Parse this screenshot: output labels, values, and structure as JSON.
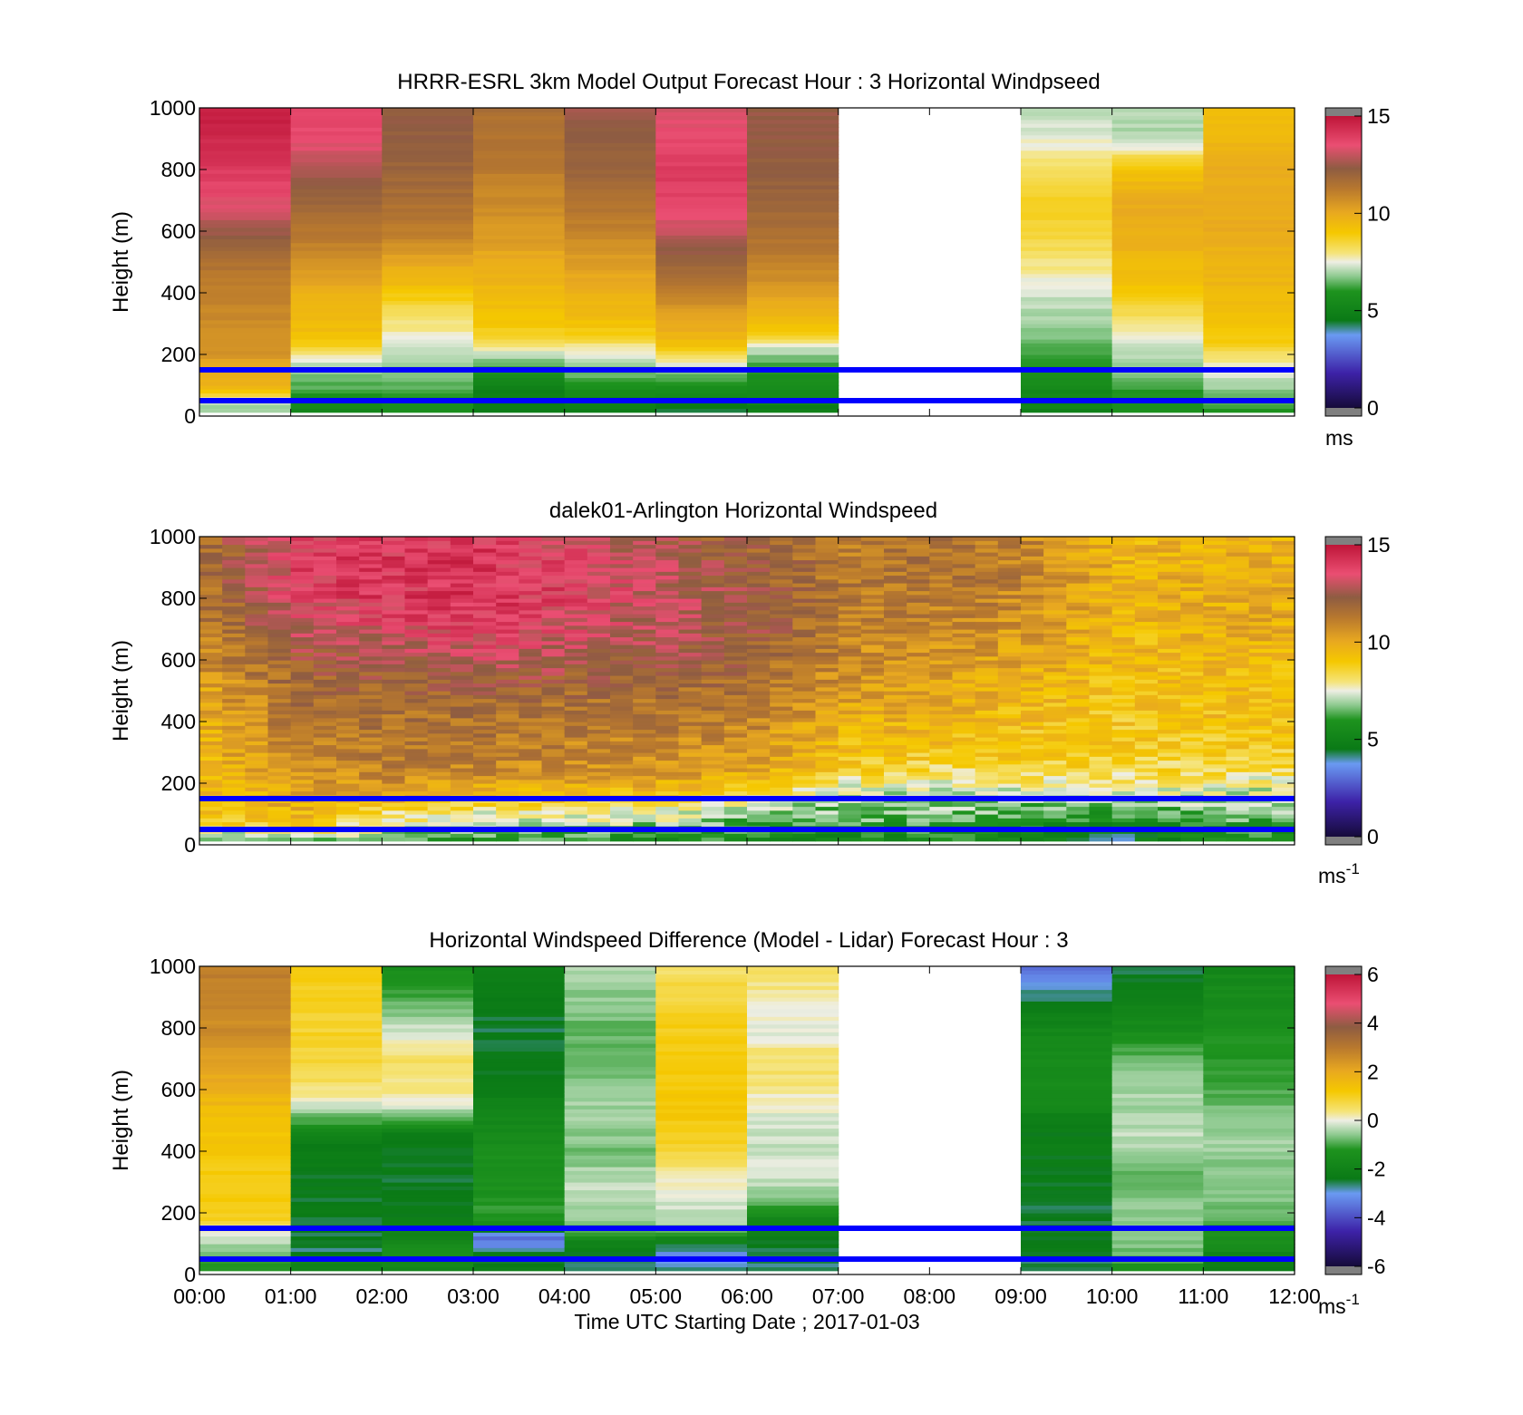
{
  "colors": {
    "ref_lines": "#0000ff",
    "missing": "#ffffff",
    "out_of_range": "#808080"
  },
  "x_axis": {
    "ticks": [
      "00:00",
      "01:00",
      "02:00",
      "03:00",
      "04:00",
      "05:00",
      "06:00",
      "07:00",
      "08:00",
      "09:00",
      "10:00",
      "11:00",
      "12:00"
    ],
    "label": "Time UTC  Starting Date ; 2017-01-03",
    "range_hours": [
      0,
      12
    ]
  },
  "chart_data": [
    {
      "type": "heatmap",
      "title": "HRRR-ESRL 3km Model Output   Forecast Hour : 3 Horizontal Windpseed",
      "ylabel": "Height (m)",
      "ylim": [
        0,
        1000
      ],
      "yticks": [
        "0",
        "200",
        "400",
        "600",
        "800",
        "1000"
      ],
      "colorbar": {
        "ticks": [
          "0",
          "5",
          "10",
          "15"
        ],
        "range": [
          0,
          15
        ],
        "unit": "ms",
        "unit_sup": ""
      },
      "missing_hours": [
        7,
        8
      ],
      "reference_lines_m": [
        50,
        150
      ],
      "profile_heights_m": [
        25,
        50,
        75,
        100,
        125,
        150,
        175,
        200,
        225,
        250,
        300,
        350,
        400,
        450,
        500,
        550,
        600,
        700,
        800,
        900,
        1000
      ],
      "hourly_profiles": [
        [
          6.8,
          7.2,
          9.0,
          9.6,
          10.0,
          10.0,
          10.2,
          10.5,
          10.6,
          10.7,
          10.8,
          10.9,
          11.0,
          11.2,
          11.5,
          12.0,
          12.5,
          13.5,
          14.0,
          14.5,
          14.8
        ],
        [
          5.2,
          5.6,
          6.0,
          6.4,
          6.6,
          6.9,
          7.3,
          7.8,
          8.5,
          9.2,
          9.4,
          9.6,
          9.8,
          10.2,
          10.6,
          11.0,
          11.3,
          12.0,
          12.8,
          13.5,
          13.8
        ],
        [
          5.6,
          5.9,
          6.2,
          6.4,
          6.6,
          6.7,
          6.9,
          7.0,
          7.3,
          7.6,
          7.9,
          8.4,
          9.0,
          9.6,
          10.0,
          10.6,
          11.2,
          11.6,
          12.0,
          12.2,
          12.3
        ],
        [
          4.6,
          4.7,
          4.9,
          5.1,
          5.4,
          6.0,
          6.6,
          7.2,
          7.8,
          8.4,
          9.0,
          9.3,
          9.5,
          9.7,
          9.9,
          10.2,
          10.4,
          10.8,
          11.2,
          11.4,
          11.6
        ],
        [
          4.8,
          5.1,
          5.5,
          5.9,
          6.3,
          6.7,
          7.0,
          7.4,
          7.8,
          8.6,
          9.2,
          9.6,
          9.8,
          10.0,
          10.3,
          10.6,
          11.0,
          11.5,
          12.0,
          12.3,
          12.5
        ],
        [
          4.5,
          4.9,
          5.4,
          5.8,
          6.4,
          7.0,
          7.6,
          8.3,
          9.0,
          9.6,
          10.0,
          10.5,
          11.0,
          11.5,
          12.0,
          12.5,
          13.0,
          13.8,
          14.0,
          13.6,
          13.2
        ],
        [
          4.8,
          5.1,
          5.4,
          5.6,
          5.8,
          6.0,
          6.4,
          6.8,
          7.4,
          8.5,
          9.3,
          9.8,
          10.3,
          10.7,
          11.0,
          11.3,
          11.6,
          12.0,
          12.2,
          12.3,
          12.4
        ],
        null,
        null,
        [
          5.0,
          5.2,
          5.3,
          5.5,
          5.6,
          5.8,
          6.0,
          6.2,
          6.4,
          6.6,
          6.9,
          7.1,
          7.3,
          7.6,
          8.0,
          8.3,
          8.6,
          8.6,
          8.2,
          7.5,
          7.0
        ],
        [
          5.8,
          6.0,
          6.1,
          6.3,
          6.5,
          6.7,
          6.9,
          7.0,
          7.2,
          7.5,
          8.0,
          8.5,
          9.0,
          9.3,
          9.5,
          9.7,
          9.8,
          9.9,
          9.2,
          7.0,
          7.1
        ],
        [
          6.0,
          6.3,
          6.6,
          6.9,
          7.2,
          7.5,
          7.8,
          8.2,
          8.6,
          8.9,
          9.2,
          9.4,
          9.5,
          9.6,
          9.7,
          9.8,
          9.9,
          10.0,
          9.9,
          9.6,
          9.4
        ]
      ]
    },
    {
      "type": "heatmap",
      "title": "dalek01-Arlington  Horizontal Windspeed",
      "ylabel": "Height (m)",
      "ylim": [
        0,
        1000
      ],
      "yticks": [
        "0",
        "200",
        "400",
        "600",
        "800",
        "1000"
      ],
      "colorbar": {
        "ticks": [
          "0",
          "5",
          "10",
          "15"
        ],
        "range": [
          0,
          15
        ],
        "unit": "ms",
        "unit_sup": "-1"
      },
      "time_step_minutes": 15,
      "valid_hours": [
        0,
        11.75
      ],
      "reference_lines_m": [
        50,
        150
      ],
      "profile_heights_m": [
        25,
        50,
        75,
        100,
        125,
        150,
        175,
        200,
        225,
        250,
        300,
        350,
        400,
        450,
        500,
        550,
        600,
        700,
        800,
        900,
        1000
      ],
      "hourly_profiles": [
        [
          6.5,
          7.5,
          8.6,
          9.0,
          9.2,
          9.3,
          9.4,
          9.5,
          9.6,
          9.6,
          9.7,
          9.8,
          9.8,
          10.0,
          10.2,
          10.5,
          10.8,
          11.2,
          11.5,
          11.6,
          11.7
        ],
        [
          7.0,
          8.6,
          9.4,
          9.6,
          9.8,
          10.0,
          10.2,
          10.4,
          10.6,
          10.8,
          11.0,
          11.3,
          11.5,
          11.6,
          11.8,
          12.0,
          12.2,
          12.8,
          13.6,
          13.9,
          13.7
        ],
        [
          6.6,
          7.2,
          7.6,
          8.2,
          8.8,
          9.5,
          10.0,
          10.5,
          10.8,
          11.0,
          11.2,
          11.4,
          11.5,
          11.6,
          11.9,
          12.2,
          12.6,
          13.4,
          14.0,
          14.0,
          13.9
        ],
        [
          6.0,
          6.6,
          7.2,
          7.6,
          8.2,
          8.8,
          9.4,
          10.0,
          10.6,
          10.9,
          11.1,
          11.3,
          11.5,
          11.7,
          12.0,
          12.5,
          13.0,
          13.8,
          14.2,
          14.2,
          14.0
        ],
        [
          5.9,
          6.5,
          7.2,
          7.6,
          8.3,
          9.0,
          9.6,
          10.0,
          10.4,
          10.7,
          10.9,
          11.1,
          11.3,
          11.5,
          11.8,
          12.2,
          12.6,
          13.2,
          13.6,
          13.5,
          13.2
        ],
        [
          5.8,
          6.4,
          7.0,
          7.5,
          8.1,
          8.7,
          9.3,
          9.8,
          10.2,
          10.5,
          10.8,
          11.0,
          11.2,
          11.4,
          11.7,
          12.0,
          12.4,
          12.8,
          13.0,
          12.8,
          12.5
        ],
        [
          5.6,
          6.0,
          6.4,
          6.8,
          7.2,
          7.8,
          8.6,
          9.2,
          9.7,
          10.0,
          10.3,
          10.6,
          10.9,
          11.1,
          11.3,
          11.6,
          11.9,
          12.2,
          12.3,
          12.1,
          11.8
        ],
        [
          5.5,
          5.8,
          6.2,
          6.5,
          6.7,
          7.0,
          7.4,
          7.9,
          8.4,
          8.8,
          9.2,
          9.5,
          9.8,
          10.0,
          10.3,
          10.6,
          10.8,
          11.0,
          11.2,
          11.3,
          11.2
        ],
        [
          5.6,
          6.0,
          6.3,
          6.6,
          6.8,
          7.0,
          7.2,
          7.5,
          7.9,
          8.4,
          9.0,
          9.4,
          9.6,
          9.8,
          10.0,
          10.2,
          10.5,
          10.8,
          11.2,
          11.6,
          11.4
        ],
        [
          5.3,
          5.6,
          5.9,
          6.2,
          6.6,
          7.0,
          7.4,
          7.8,
          8.2,
          8.6,
          8.9,
          9.1,
          9.3,
          9.4,
          9.6,
          9.8,
          10.0,
          10.4,
          10.8,
          11.0,
          10.8
        ],
        [
          4.4,
          4.8,
          5.4,
          6.0,
          6.6,
          7.0,
          7.4,
          7.8,
          8.2,
          8.5,
          8.7,
          8.9,
          9.0,
          9.1,
          9.2,
          9.3,
          9.4,
          9.5,
          9.6,
          9.6,
          9.5
        ],
        [
          5.6,
          5.9,
          6.2,
          6.5,
          6.8,
          7.0,
          7.3,
          7.6,
          8.0,
          8.4,
          8.8,
          9.0,
          9.2,
          9.3,
          9.4,
          9.5,
          9.6,
          9.8,
          9.9,
          9.9,
          9.8
        ]
      ]
    },
    {
      "type": "heatmap",
      "title": "Horizontal Windspeed Difference (Model - Lidar) Forecast Hour : 3",
      "ylabel": "Height (m)",
      "ylim": [
        0,
        1000
      ],
      "yticks": [
        "0",
        "200",
        "400",
        "600",
        "800",
        "1000"
      ],
      "colorbar": {
        "ticks": [
          "-6",
          "-4",
          "-2",
          "0",
          "2",
          "4",
          "6"
        ],
        "range": [
          -6,
          6
        ],
        "unit": "ms",
        "unit_sup": "-1"
      },
      "missing_hours": [
        7,
        8
      ],
      "reference_lines_m": [
        50,
        150
      ],
      "profile_heights_m": [
        25,
        50,
        75,
        100,
        125,
        150,
        175,
        200,
        225,
        250,
        300,
        350,
        400,
        450,
        500,
        550,
        600,
        700,
        800,
        900,
        1000
      ],
      "hourly_profiles": [
        [
          -1.2,
          -0.9,
          -0.6,
          -0.4,
          -0.2,
          0.2,
          1.0,
          1.1,
          1.1,
          1.1,
          1.1,
          1.1,
          1.2,
          1.3,
          1.4,
          1.6,
          1.8,
          2.3,
          2.6,
          2.8,
          2.9
        ],
        [
          -1.8,
          -1.9,
          -2.6,
          -2.6,
          -2.5,
          -2.4,
          -2.4,
          -2.4,
          -2.4,
          -2.4,
          -2.4,
          -2.4,
          -2.3,
          -2.2,
          -1.0,
          -0.2,
          0.4,
          0.8,
          0.9,
          1.0,
          1.0
        ],
        [
          -1.8,
          -1.6,
          -1.5,
          -1.6,
          -1.8,
          -2.0,
          -2.2,
          -2.3,
          -2.3,
          -2.4,
          -2.4,
          -2.4,
          -2.4,
          -2.3,
          -1.0,
          0.0,
          0.3,
          0.6,
          -0.2,
          -1.0,
          -1.4
        ],
        [
          -2.3,
          -2.3,
          -2.5,
          -3.3,
          -3.8,
          -1.8,
          -1.2,
          -1.2,
          -1.2,
          -1.3,
          -1.3,
          -1.4,
          -1.4,
          -1.6,
          -1.8,
          -2.0,
          -2.2,
          -2.4,
          -2.5,
          -2.4,
          -2.0
        ],
        [
          -2.6,
          -2.6,
          -2.4,
          -2.0,
          -1.4,
          -0.8,
          -0.6,
          -0.5,
          -0.4,
          -0.3,
          -0.3,
          -0.5,
          -0.8,
          -0.6,
          -0.5,
          -0.5,
          -0.6,
          -0.9,
          -0.8,
          -0.6,
          -0.4
        ],
        [
          -2.6,
          -3.3,
          -3.0,
          -2.3,
          -1.5,
          -0.6,
          -0.4,
          -0.3,
          -0.2,
          -0.1,
          0.2,
          0.4,
          0.8,
          1.0,
          1.1,
          1.2,
          1.2,
          1.2,
          1.0,
          0.8,
          0.5
        ],
        [
          -2.6,
          -2.7,
          -2.6,
          -2.4,
          -2.2,
          -2.0,
          -1.8,
          -1.4,
          -1.0,
          -0.6,
          -0.3,
          0.0,
          -0.2,
          -0.2,
          -0.1,
          0.0,
          0.3,
          0.5,
          -0.1,
          0.2,
          0.6
        ],
        null,
        null,
        [
          -2.5,
          -2.6,
          -2.4,
          -2.4,
          -2.4,
          -2.4,
          -2.5,
          -2.5,
          -2.5,
          -2.5,
          -2.4,
          -2.4,
          -2.3,
          -2.3,
          -2.2,
          -1.8,
          -1.6,
          -1.5,
          -1.8,
          -2.6,
          -3.5
        ],
        [
          -1.2,
          -1.0,
          -0.8,
          -0.7,
          -0.6,
          -0.5,
          -0.5,
          -0.5,
          -0.6,
          -0.8,
          -1.0,
          -0.6,
          -0.4,
          -0.3,
          -0.3,
          -0.5,
          -0.4,
          -0.8,
          -1.6,
          -2.2,
          -2.6
        ],
        [
          -2.2,
          -2.0,
          -1.8,
          -1.6,
          -1.4,
          -1.2,
          -1.0,
          -0.9,
          -0.8,
          -0.7,
          -0.6,
          -0.6,
          -0.5,
          -0.5,
          -0.6,
          -0.8,
          -1.0,
          -1.2,
          -1.4,
          -1.6,
          -1.8
        ]
      ]
    }
  ]
}
